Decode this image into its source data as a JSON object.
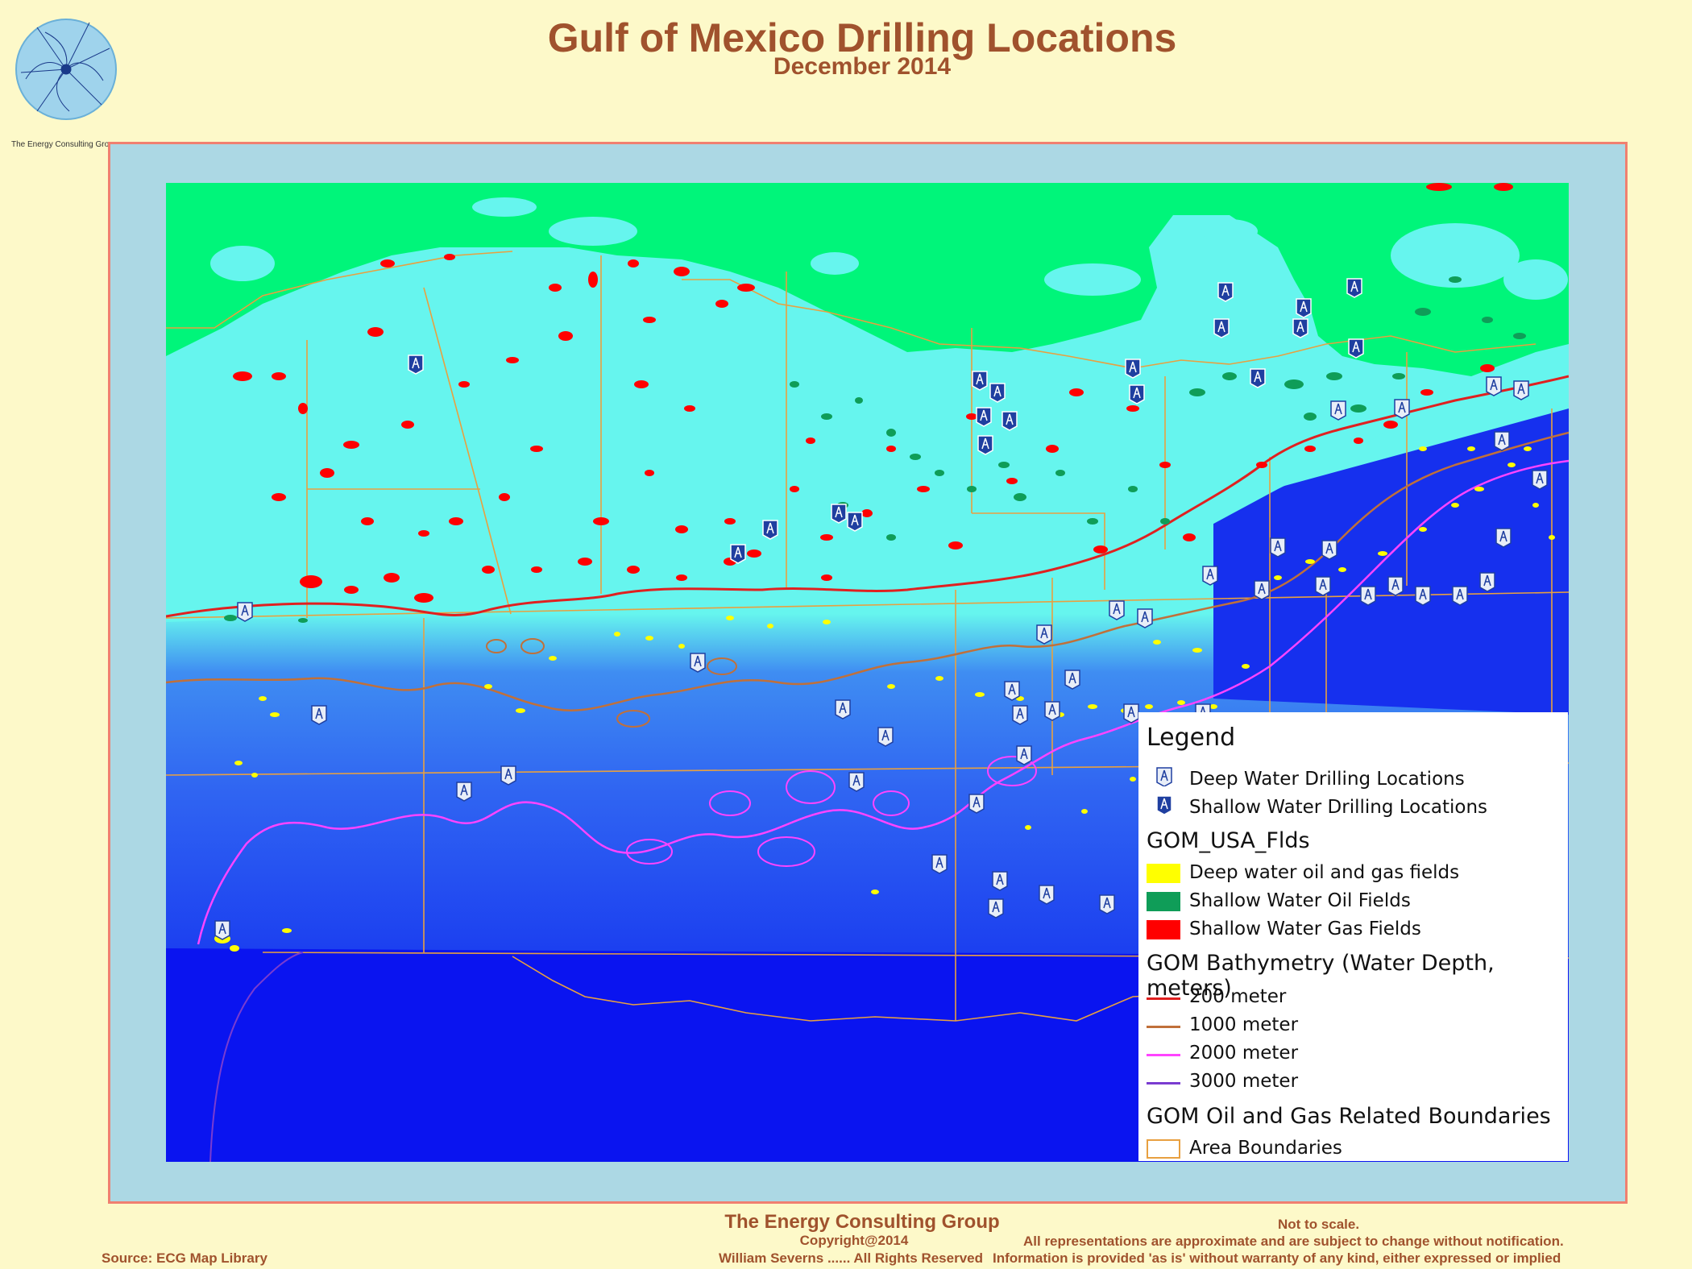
{
  "header": {
    "title": "Gulf of Mexico Drilling Locations",
    "subtitle": "December 2014",
    "logo_caption": "The Energy Consulting Group"
  },
  "legend": {
    "title": "Legend",
    "drilling": [
      {
        "label": "Deep Water Drilling Locations",
        "icon": "deep-water-rig-icon"
      },
      {
        "label": "Shallow Water Drilling Locations",
        "icon": "shallow-water-rig-icon"
      }
    ],
    "fields_heading": "GOM_USA_Flds",
    "fields": [
      {
        "label": "Deep water oil and gas fields",
        "color": "#ffff00"
      },
      {
        "label": "Shallow Water Oil Fields",
        "color": "#0f9d58"
      },
      {
        "label": "Shallow Water Gas Fields",
        "color": "#ff0000"
      }
    ],
    "bathymetry_heading": "GOM Bathymetry (Water Depth, meters)",
    "bathymetry": [
      {
        "label": "200 meter",
        "color": "#e02020"
      },
      {
        "label": "1000 meter",
        "color": "#c0703a"
      },
      {
        "label": "2000 meter",
        "color": "#ff44ff"
      },
      {
        "label": "3000 meter",
        "color": "#7a3cd0"
      }
    ],
    "boundaries_heading": "GOM Oil and Gas Related Boundaries",
    "boundaries": [
      {
        "label": "Area Boundaries",
        "color": "#e8a040"
      }
    ]
  },
  "footer": {
    "org": "The Energy Consulting Group",
    "copyright": "Copyright@2014",
    "rights": "William Severns ...... All Rights Reserved",
    "source": "Source: ECG Map Library",
    "scale_note": "Not to scale.",
    "disclaimer_1": "All representations are approximate and are subject to change without notification.",
    "disclaimer_2": "Information is provided 'as is' without warranty of any kind, either expressed or implied"
  },
  "colors": {
    "land": "#00f57a",
    "shelf": "#66f5ee",
    "deep": "#0a1ef0",
    "title": "#a0522d"
  }
}
